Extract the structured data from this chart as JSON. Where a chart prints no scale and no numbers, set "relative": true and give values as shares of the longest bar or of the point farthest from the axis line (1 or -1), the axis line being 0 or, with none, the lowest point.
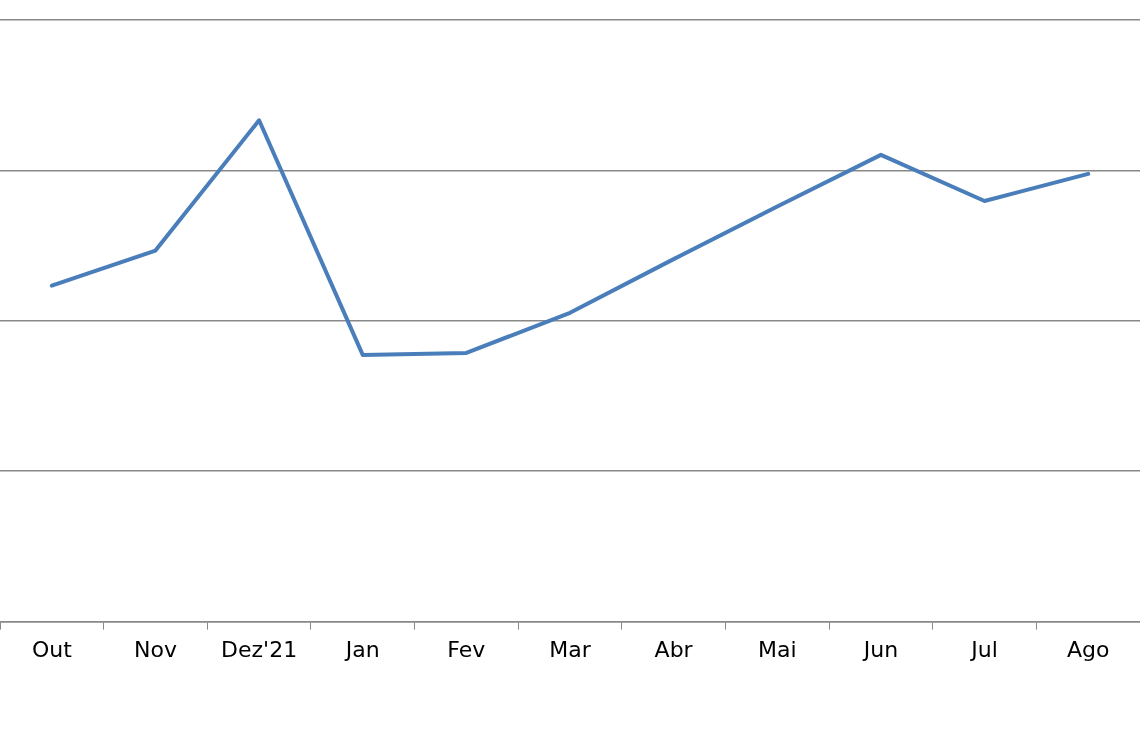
{
  "chart_data": {
    "type": "line",
    "relative": true,
    "grid": "y",
    "marker": "none",
    "line_style": "solid",
    "categories": [
      "Out",
      "Nov",
      "Dez'21",
      "Jan",
      "Fev",
      "Mar",
      "Abr",
      "Mai",
      "Jun",
      "Jul",
      "Ago"
    ],
    "series": [
      {
        "color": "#4a7ebb",
        "values": [
          0.67,
          0.74,
          1,
          0.532,
          0.536,
          0.616,
          0.723,
          0.828,
          0.931,
          0.839,
          0.893
        ]
      }
    ]
  }
}
